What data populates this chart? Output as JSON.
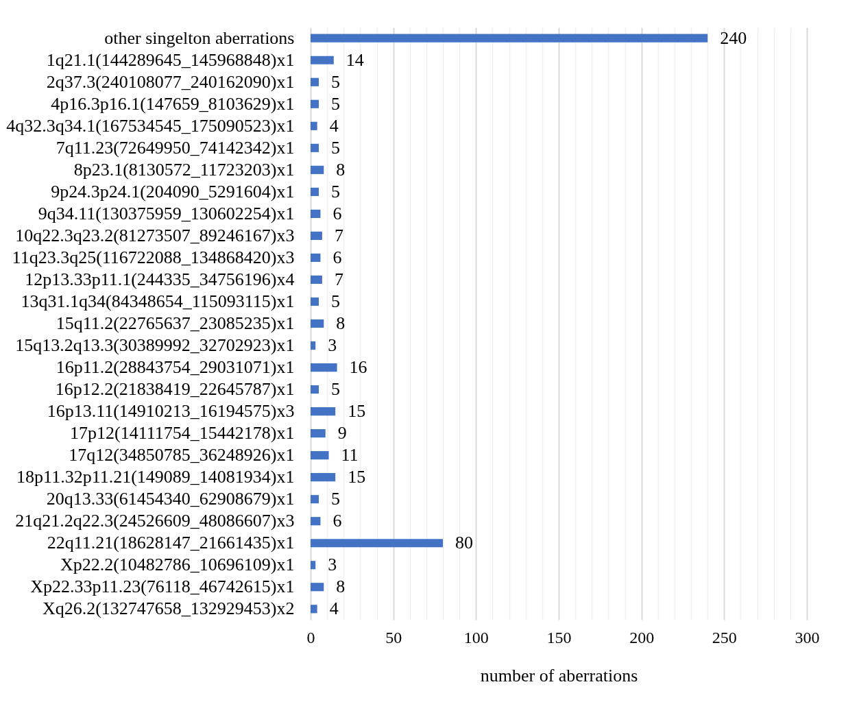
{
  "chart_data": {
    "type": "bar",
    "orientation": "horizontal",
    "xlabel": "number of aberrations",
    "categories": [
      "other singelton aberrations",
      "1q21.1(144289645_145968848)x1",
      "2q37.3(240108077_240162090)x1",
      "4p16.3p16.1(147659_8103629)x1",
      "4q32.3q34.1(167534545_175090523)x1",
      "7q11.23(72649950_74142342)x1",
      "8p23.1(8130572_11723203)x1",
      "9p24.3p24.1(204090_5291604)x1",
      "9q34.11(130375959_130602254)x1",
      "10q22.3q23.2(81273507_89246167)x3",
      "11q23.3q25(116722088_134868420)x3",
      "12p13.33p11.1(244335_34756196)x4",
      "13q31.1q34(84348654_115093115)x1",
      "15q11.2(22765637_23085235)x1",
      "15q13.2q13.3(30389992_32702923)x1",
      "16p11.2(28843754_29031071)x1",
      "16p12.2(21838419_22645787)x1",
      "16p13.11(14910213_16194575)x3",
      "17p12(14111754_15442178)x1",
      "17q12(34850785_36248926)x1",
      "18p11.32p11.21(149089_14081934)x1",
      "20q13.33(61454340_62908679)x1",
      "21q21.2q22.3(24526609_48086607)x3",
      "22q11.21(18628147_21661435)x1",
      "Xp22.2(10482786_10696109)x1",
      "Xp22.33p11.23(76118_46742615)x1",
      "Xq26.2(132747658_132929453)x2"
    ],
    "values": [
      240,
      14,
      5,
      5,
      4,
      5,
      8,
      5,
      6,
      7,
      6,
      7,
      5,
      8,
      3,
      16,
      5,
      15,
      9,
      11,
      15,
      5,
      6,
      80,
      3,
      8,
      4
    ],
    "color": "#4472c4",
    "data_labels": true,
    "grid": "x",
    "xlim": [
      0,
      300
    ],
    "xticks": [
      0,
      {
        "value": 10,
        "label": null
      },
      {
        "value": 20,
        "label": null
      },
      {
        "value": 30,
        "label": null
      },
      {
        "value": 40,
        "label": null
      },
      50,
      {
        "value": 60,
        "label": null
      },
      {
        "value": 70,
        "label": null
      },
      {
        "value": 80,
        "label": null
      },
      {
        "value": 90,
        "label": null
      },
      100,
      {
        "value": 110,
        "label": null
      },
      {
        "value": 120,
        "label": null
      },
      {
        "value": 130,
        "label": null
      },
      {
        "value": 140,
        "label": null
      },
      150,
      {
        "value": 160,
        "label": null
      },
      {
        "value": 170,
        "label": null
      },
      {
        "value": 180,
        "label": null
      },
      {
        "value": 190,
        "label": null
      },
      200,
      {
        "value": 210,
        "label": null
      },
      {
        "value": 220,
        "label": null
      },
      {
        "value": 230,
        "label": null
      },
      {
        "value": 240,
        "label": null
      },
      250,
      {
        "value": 260,
        "label": null
      },
      {
        "value": 270,
        "label": null
      },
      {
        "value": 280,
        "label": null
      },
      {
        "value": 290,
        "label": null
      },
      300
    ]
  }
}
